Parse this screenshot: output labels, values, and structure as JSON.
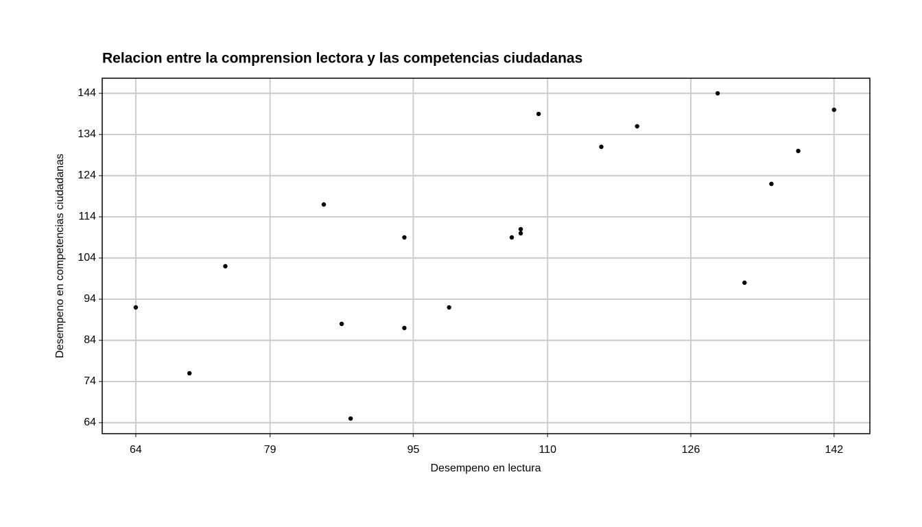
{
  "chart_data": {
    "type": "scatter",
    "title": "Relacion entre la comprension lectora y las competencias ciudadanas",
    "x_label": "Desempeno en lectura",
    "y_label": "Desempeno en competencias ciudadanas",
    "x": [
      64,
      70,
      74,
      85,
      87,
      88,
      94,
      94,
      99,
      106,
      107,
      107,
      109,
      116,
      120,
      129,
      132,
      135,
      138,
      142
    ],
    "values": [
      92,
      76,
      102,
      117,
      88,
      65,
      109,
      87,
      92,
      109,
      111,
      110,
      139,
      131,
      136,
      144,
      98,
      122,
      130,
      140
    ],
    "color": "#000000",
    "xlim": [
      60.25,
      146
    ],
    "ylim": [
      61.33,
      147.67
    ],
    "xticks": [
      64,
      79,
      95,
      110,
      126,
      142
    ],
    "yticks": [
      64,
      74,
      84,
      94,
      104,
      114,
      124,
      134,
      144
    ],
    "grid": true
  }
}
